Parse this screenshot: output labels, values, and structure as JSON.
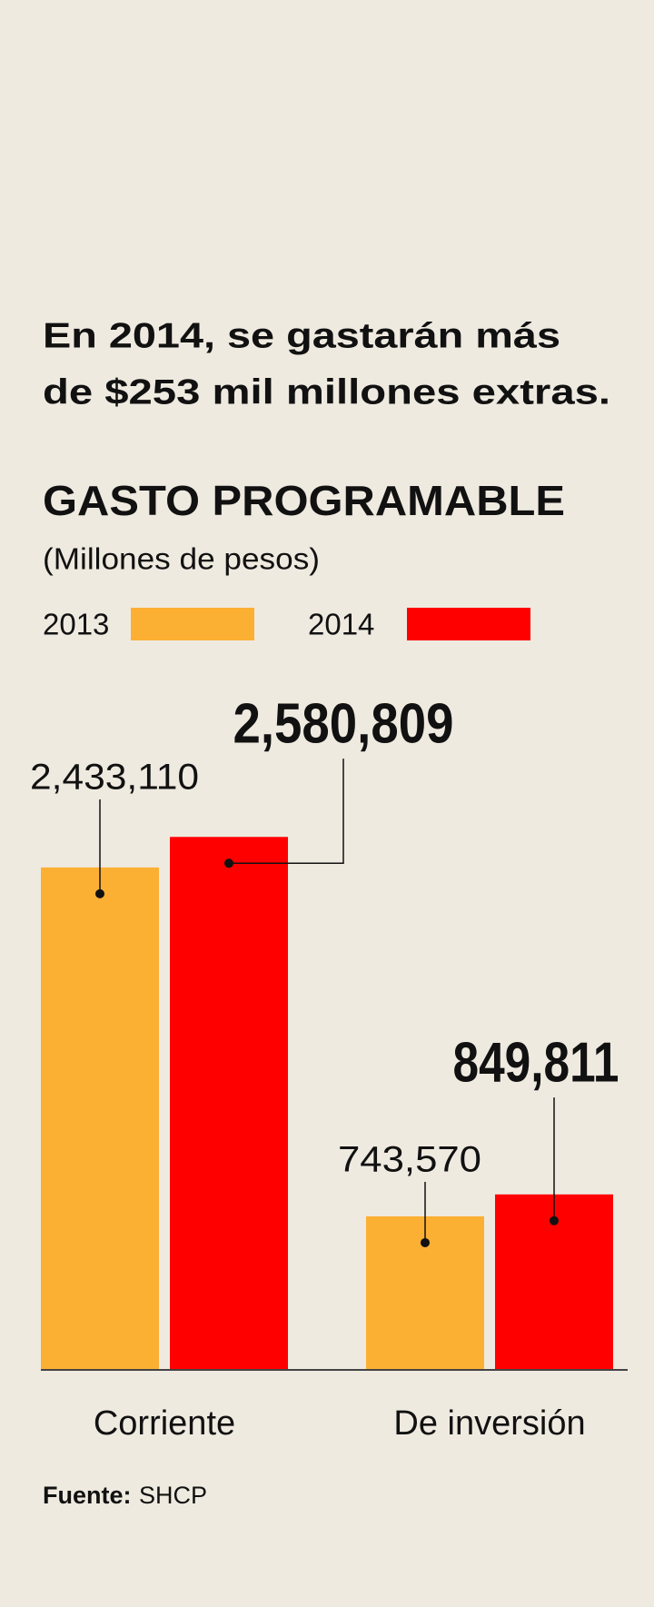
{
  "chart_data": {
    "type": "bar",
    "title_lines": [
      "En 2014, se gastarán más",
      "de $253 mil millones extras."
    ],
    "chart_title": "GASTO PROGRAMABLE",
    "subtitle": "(Millones de pesos)",
    "categories": [
      "Corriente",
      "De inversión"
    ],
    "series": [
      {
        "name": "2013",
        "color": "#fbb034",
        "values": [
          2433110,
          743570
        ],
        "value_labels": [
          "2,433,110",
          "743,570"
        ]
      },
      {
        "name": "2014",
        "color": "#ff0000",
        "values": [
          2580809,
          849811
        ],
        "value_labels": [
          "2,580,809",
          "849,811"
        ]
      }
    ],
    "ylim": [
      0,
      3000000
    ],
    "source_label": "Fuente:",
    "source": "SHCP"
  }
}
